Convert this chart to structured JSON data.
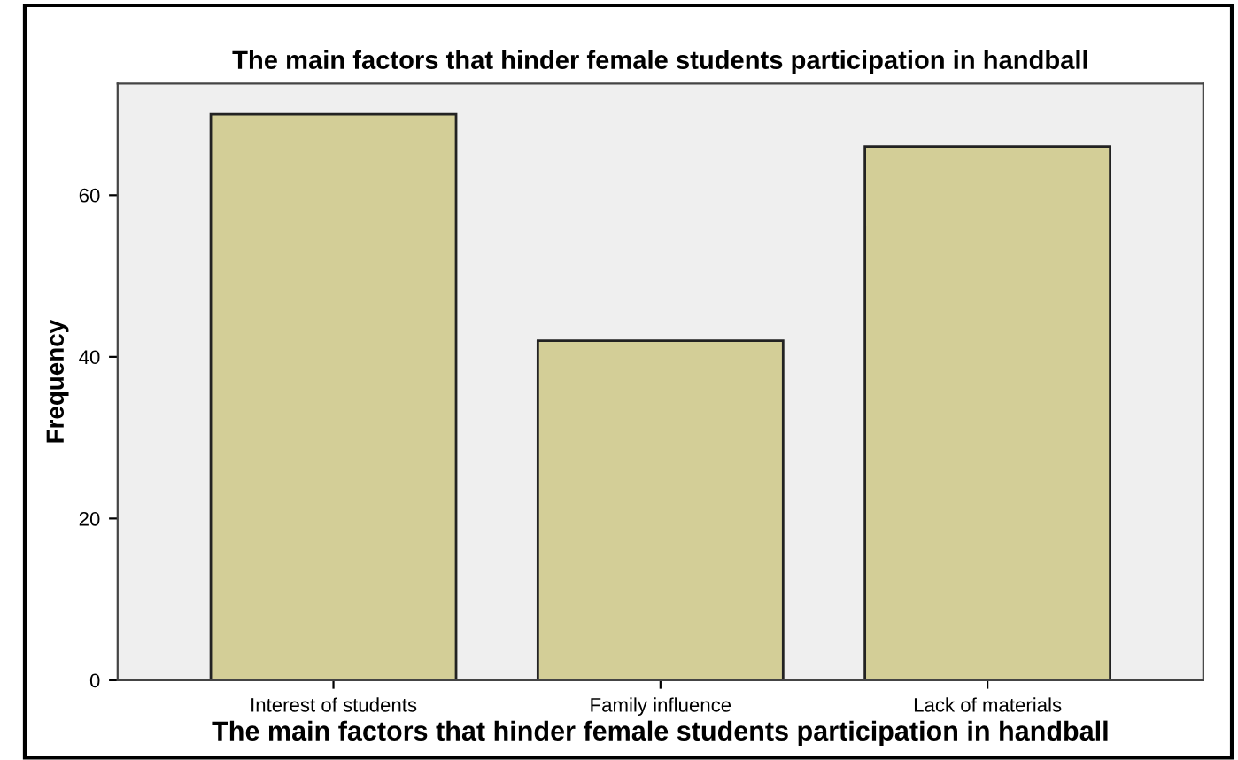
{
  "chart_data": {
    "type": "bar",
    "title": "The main factors that hinder female students participation in handball",
    "xlabel": "The main factors that hinder female students participation in handball",
    "ylabel": "Frequency",
    "categories": [
      "Interest of students",
      "Family influence",
      "Lack of materials"
    ],
    "values": [
      70,
      42,
      66
    ],
    "color": "#d3ce97",
    "ylim": [
      0,
      73.8
    ],
    "yticks": [
      0,
      20,
      40,
      60
    ],
    "grid": false
  }
}
